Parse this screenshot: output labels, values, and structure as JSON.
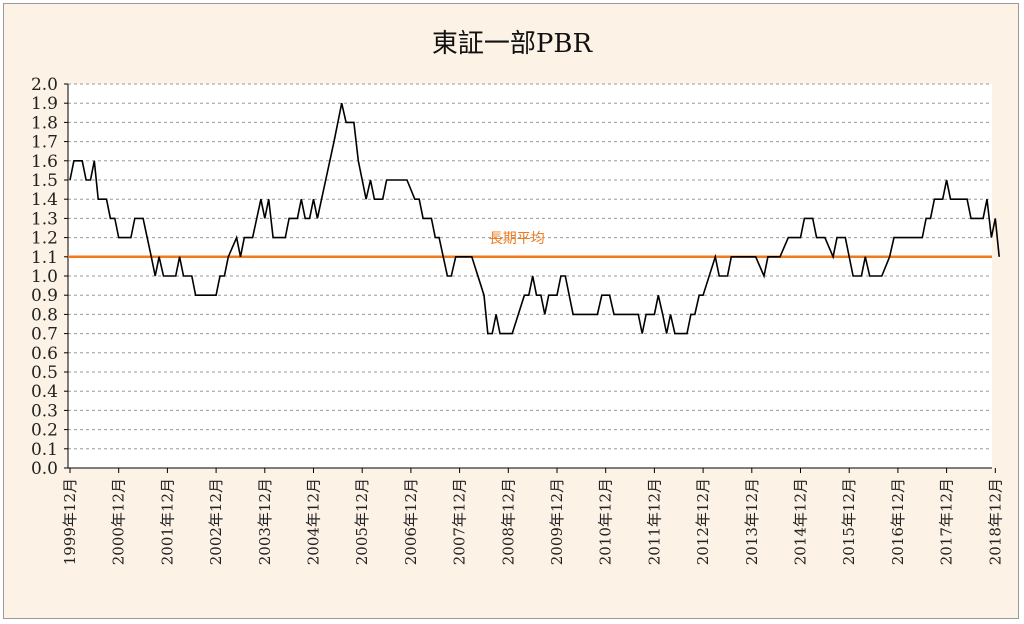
{
  "chart_data": {
    "type": "line",
    "title": "東証一部PBR",
    "ylim": [
      0,
      2
    ],
    "y_ticks": [
      "2.0",
      "1.9",
      "1.8",
      "1.7",
      "1.6",
      "1.5",
      "1.4",
      "1.3",
      "1.2",
      "1.1",
      "1.0",
      "0.9",
      "0.8",
      "0.7",
      "0.6",
      "0.5",
      "0.4",
      "0.3",
      "0.2",
      "0.1",
      "0.0"
    ],
    "x_tick_labels": [
      "1999年12月",
      "2000年12月",
      "2001年12月",
      "2002年12月",
      "2003年12月",
      "2004年12月",
      "2005年12月",
      "2006年12月",
      "2007年12月",
      "2008年12月",
      "2009年12月",
      "2010年12月",
      "2011年12月",
      "2012年12月",
      "2013年12月",
      "2014年12月",
      "2015年12月",
      "2016年12月",
      "2017年12月",
      "2018年12月"
    ],
    "grid": true,
    "series": [
      {
        "name": "",
        "color": "#000000",
        "points": [
          [
            0,
            1.5
          ],
          [
            0.08,
            1.6
          ],
          [
            0.25,
            1.6
          ],
          [
            0.33,
            1.5
          ],
          [
            0.42,
            1.5
          ],
          [
            0.5,
            1.6
          ],
          [
            0.58,
            1.4
          ],
          [
            0.75,
            1.4
          ],
          [
            0.83,
            1.3
          ],
          [
            0.92,
            1.3
          ],
          [
            1.0,
            1.2
          ],
          [
            1.25,
            1.2
          ],
          [
            1.33,
            1.3
          ],
          [
            1.5,
            1.3
          ],
          [
            1.67,
            1.1
          ],
          [
            1.75,
            1.0
          ],
          [
            1.83,
            1.1
          ],
          [
            1.92,
            1.0
          ],
          [
            2.17,
            1.0
          ],
          [
            2.25,
            1.1
          ],
          [
            2.33,
            1.0
          ],
          [
            2.5,
            1.0
          ],
          [
            2.58,
            0.9
          ],
          [
            3.0,
            0.9
          ],
          [
            3.08,
            1.0
          ],
          [
            3.17,
            1.0
          ],
          [
            3.25,
            1.1
          ],
          [
            3.42,
            1.2
          ],
          [
            3.5,
            1.1
          ],
          [
            3.58,
            1.2
          ],
          [
            3.75,
            1.2
          ],
          [
            3.92,
            1.4
          ],
          [
            4.0,
            1.3
          ],
          [
            4.08,
            1.4
          ],
          [
            4.17,
            1.2
          ],
          [
            4.42,
            1.2
          ],
          [
            4.5,
            1.3
          ],
          [
            4.67,
            1.3
          ],
          [
            4.75,
            1.4
          ],
          [
            4.83,
            1.3
          ],
          [
            4.92,
            1.3
          ],
          [
            5.0,
            1.4
          ],
          [
            5.08,
            1.3
          ],
          [
            5.25,
            1.5
          ],
          [
            5.42,
            1.7
          ],
          [
            5.58,
            1.9
          ],
          [
            5.67,
            1.8
          ],
          [
            5.83,
            1.8
          ],
          [
            5.92,
            1.6
          ],
          [
            6.0,
            1.5
          ],
          [
            6.08,
            1.4
          ],
          [
            6.17,
            1.5
          ],
          [
            6.25,
            1.4
          ],
          [
            6.42,
            1.4
          ],
          [
            6.5,
            1.5
          ],
          [
            6.92,
            1.5
          ],
          [
            7.08,
            1.4
          ],
          [
            7.17,
            1.4
          ],
          [
            7.25,
            1.3
          ],
          [
            7.42,
            1.3
          ],
          [
            7.5,
            1.2
          ],
          [
            7.58,
            1.2
          ],
          [
            7.75,
            1.0
          ],
          [
            7.83,
            1.0
          ],
          [
            7.92,
            1.1
          ],
          [
            8.25,
            1.1
          ],
          [
            8.5,
            0.9
          ],
          [
            8.58,
            0.7
          ],
          [
            8.67,
            0.7
          ],
          [
            8.75,
            0.8
          ],
          [
            8.83,
            0.7
          ],
          [
            9.08,
            0.7
          ],
          [
            9.33,
            0.9
          ],
          [
            9.42,
            0.9
          ],
          [
            9.5,
            1.0
          ],
          [
            9.58,
            0.9
          ],
          [
            9.67,
            0.9
          ],
          [
            9.75,
            0.8
          ],
          [
            9.83,
            0.9
          ],
          [
            10.0,
            0.9
          ],
          [
            10.08,
            1.0
          ],
          [
            10.17,
            1.0
          ],
          [
            10.33,
            0.8
          ],
          [
            10.83,
            0.8
          ],
          [
            10.92,
            0.9
          ],
          [
            11.08,
            0.9
          ],
          [
            11.17,
            0.8
          ],
          [
            11.67,
            0.8
          ],
          [
            11.75,
            0.7
          ],
          [
            11.83,
            0.8
          ],
          [
            12.0,
            0.8
          ],
          [
            12.08,
            0.9
          ],
          [
            12.17,
            0.8
          ],
          [
            12.25,
            0.7
          ],
          [
            12.33,
            0.8
          ],
          [
            12.42,
            0.7
          ],
          [
            12.67,
            0.7
          ],
          [
            12.75,
            0.8
          ],
          [
            12.83,
            0.8
          ],
          [
            12.92,
            0.9
          ],
          [
            13.0,
            0.9
          ],
          [
            13.25,
            1.1
          ],
          [
            13.33,
            1.0
          ],
          [
            13.5,
            1.0
          ],
          [
            13.58,
            1.1
          ],
          [
            14.08,
            1.1
          ],
          [
            14.25,
            1.0
          ],
          [
            14.33,
            1.1
          ],
          [
            14.58,
            1.1
          ],
          [
            14.75,
            1.2
          ],
          [
            15.0,
            1.2
          ],
          [
            15.08,
            1.3
          ],
          [
            15.25,
            1.3
          ],
          [
            15.33,
            1.2
          ],
          [
            15.5,
            1.2
          ],
          [
            15.67,
            1.1
          ],
          [
            15.75,
            1.2
          ],
          [
            15.92,
            1.2
          ],
          [
            16.08,
            1.0
          ],
          [
            16.25,
            1.0
          ],
          [
            16.33,
            1.1
          ],
          [
            16.42,
            1.0
          ],
          [
            16.67,
            1.0
          ],
          [
            16.83,
            1.1
          ],
          [
            16.92,
            1.2
          ],
          [
            17.5,
            1.2
          ],
          [
            17.58,
            1.3
          ],
          [
            17.67,
            1.3
          ],
          [
            17.75,
            1.4
          ],
          [
            17.92,
            1.4
          ],
          [
            18.0,
            1.5
          ],
          [
            18.08,
            1.4
          ],
          [
            18.42,
            1.4
          ],
          [
            18.5,
            1.3
          ],
          [
            18.75,
            1.3
          ],
          [
            18.83,
            1.4
          ],
          [
            18.92,
            1.2
          ],
          [
            19.0,
            1.3
          ],
          [
            19.08,
            1.1
          ]
        ]
      }
    ],
    "reference_line": {
      "label": "長期平均",
      "value": 1.1,
      "color": "#f07a1c"
    }
  }
}
